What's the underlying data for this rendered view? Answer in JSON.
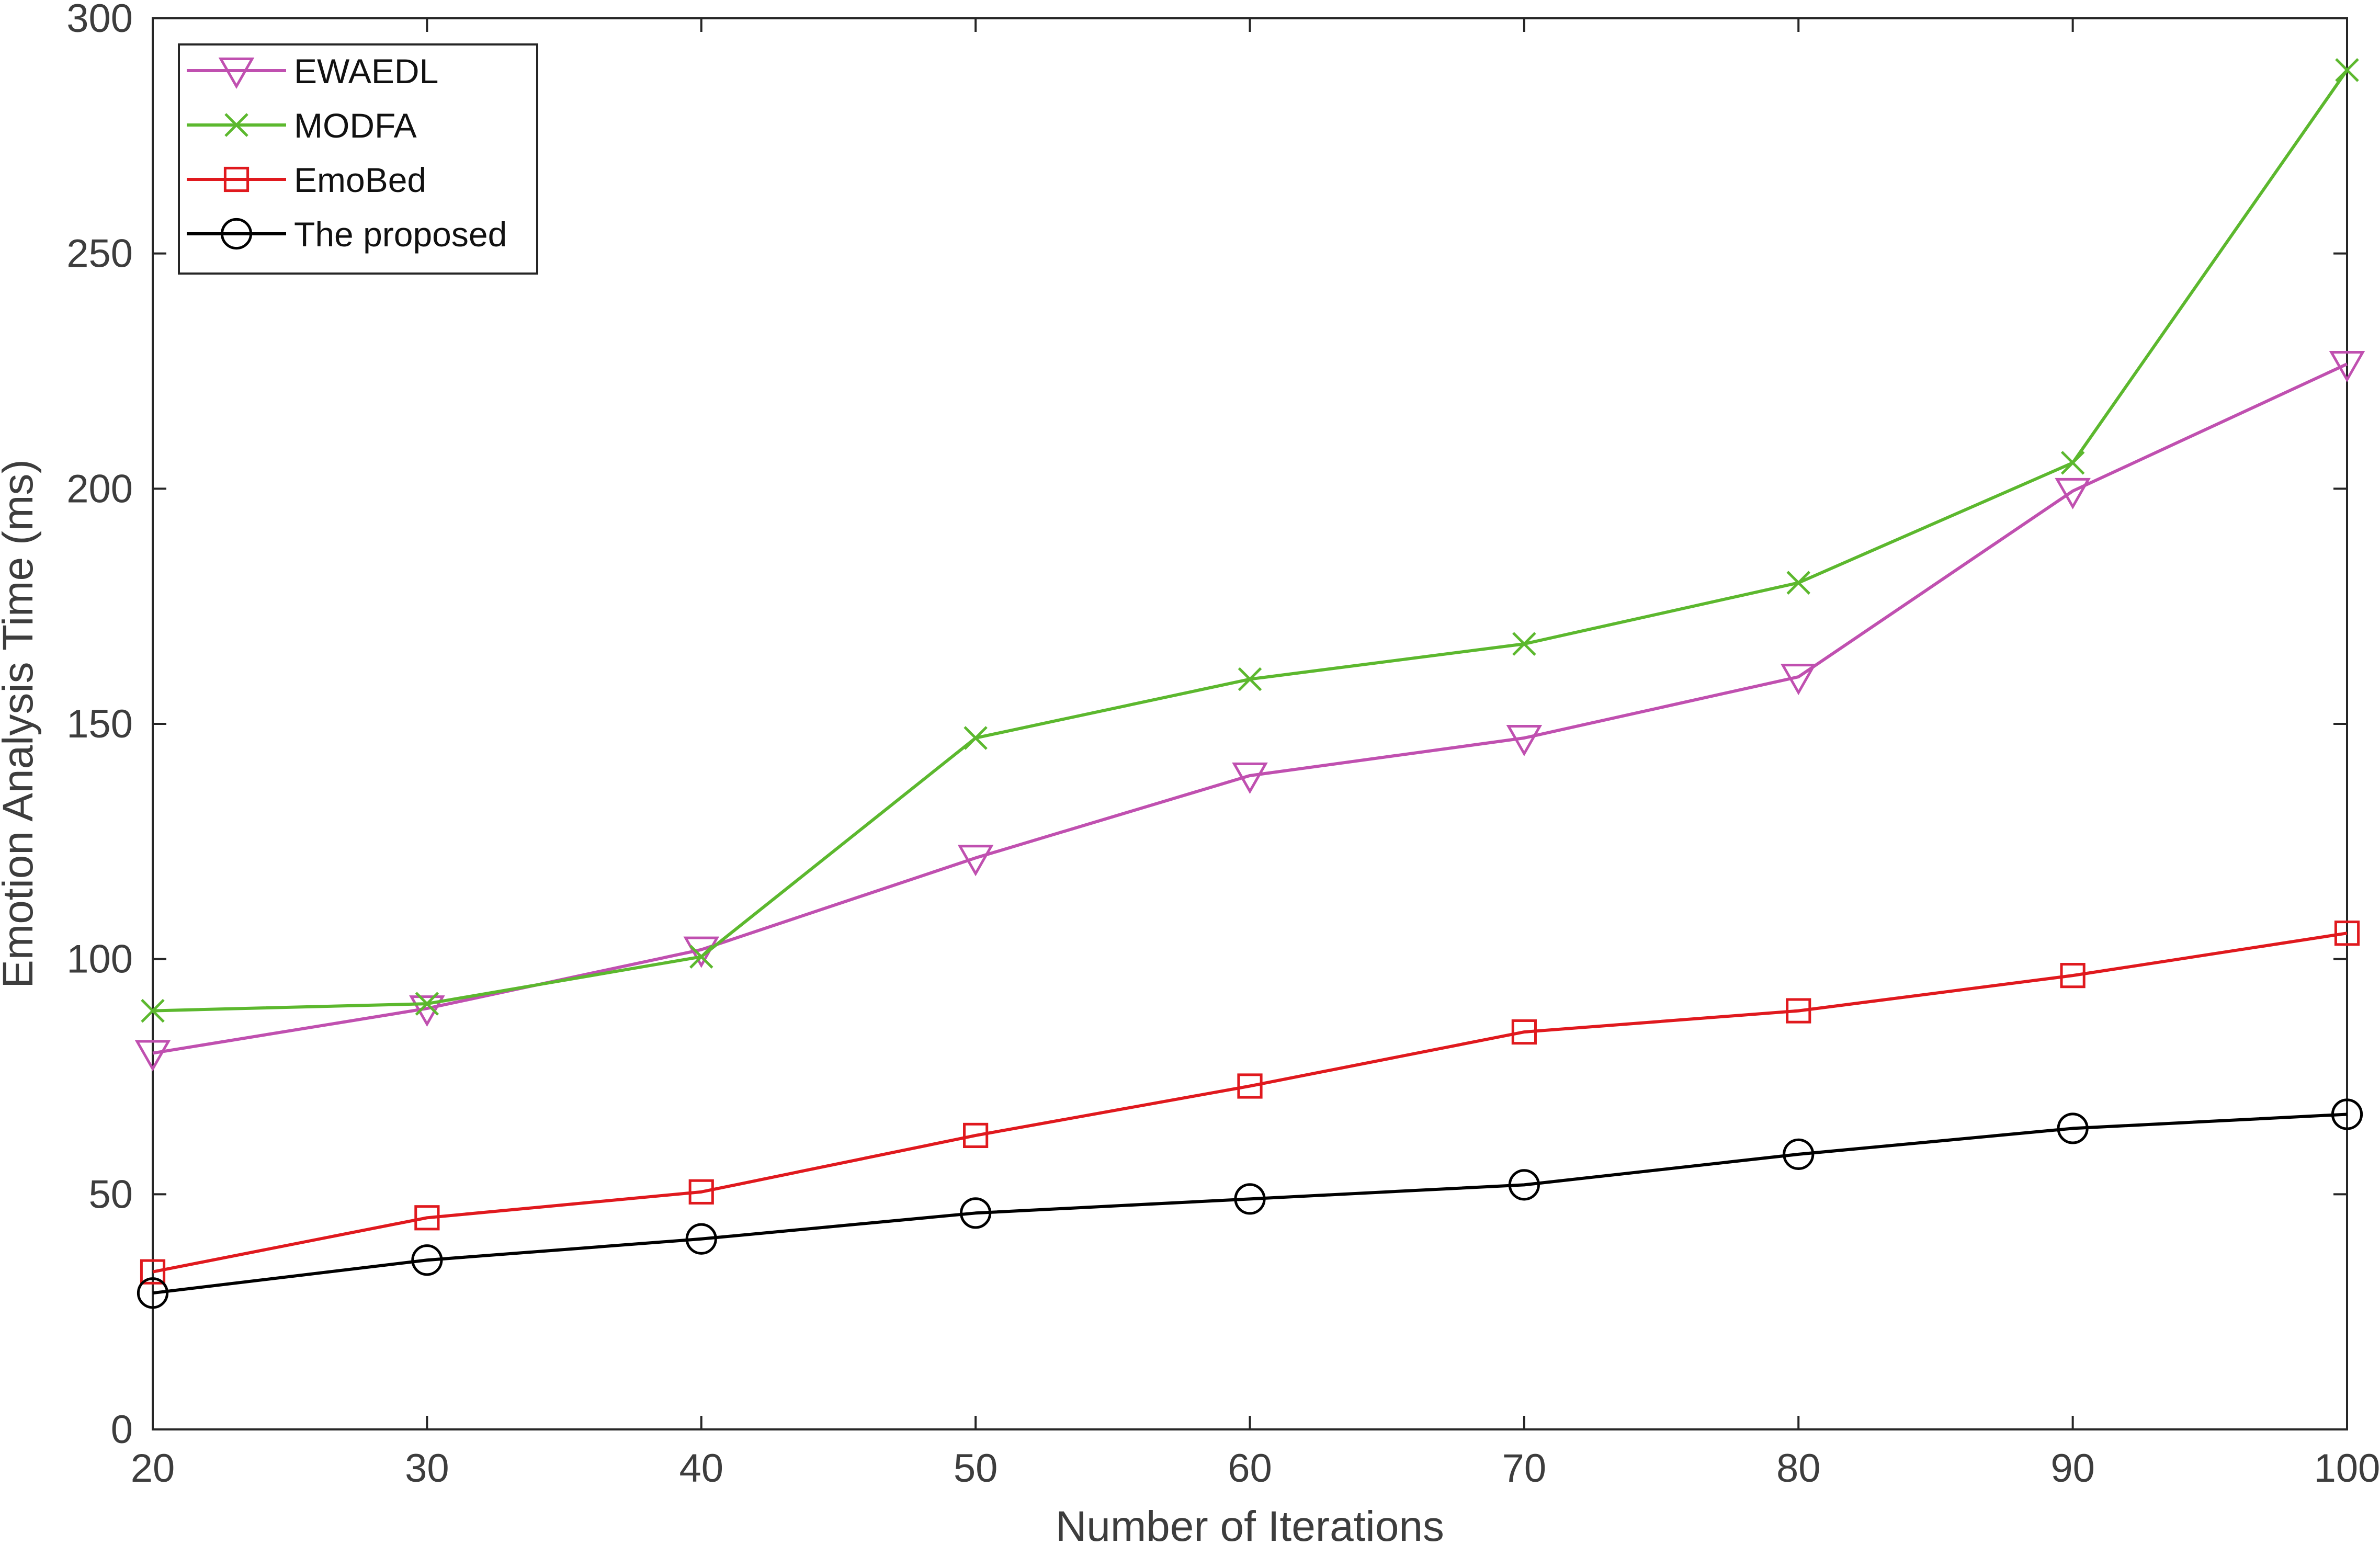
{
  "chart_data": {
    "type": "line",
    "title": "",
    "xlabel": "Number of Iterations",
    "ylabel": "Emotion Analysis Time (ms)",
    "x": [
      20,
      30,
      40,
      50,
      60,
      70,
      80,
      90,
      100
    ],
    "xlim": [
      20,
      100
    ],
    "ylim": [
      0,
      300
    ],
    "xticks": [
      "20",
      "30",
      "40",
      "50",
      "60",
      "70",
      "80",
      "90",
      "100"
    ],
    "yticks": [
      "0",
      "50",
      "100",
      "150",
      "200",
      "250",
      "300"
    ],
    "grid": false,
    "legend_position": "top-left",
    "series": [
      {
        "name": "EWAEDL",
        "values": [
          80,
          89.5,
          102,
          121.5,
          139,
          147,
          160,
          199.5,
          226.5
        ],
        "color": "#c050b0",
        "marker": "triangle-down"
      },
      {
        "name": "MODFA",
        "values": [
          89,
          90.5,
          100.5,
          147,
          159.5,
          167,
          180,
          205.5,
          289
        ],
        "color": "#5cb82e",
        "marker": "x"
      },
      {
        "name": "EmoBed",
        "values": [
          33.5,
          45,
          50.5,
          62.5,
          73,
          84.5,
          89,
          96.5,
          105.5
        ],
        "color": "#e0191e",
        "marker": "square"
      },
      {
        "name": "The proposed",
        "values": [
          29,
          36,
          40.5,
          46,
          49,
          52,
          58.5,
          64,
          67
        ],
        "color": "#000000",
        "marker": "circle"
      }
    ]
  }
}
